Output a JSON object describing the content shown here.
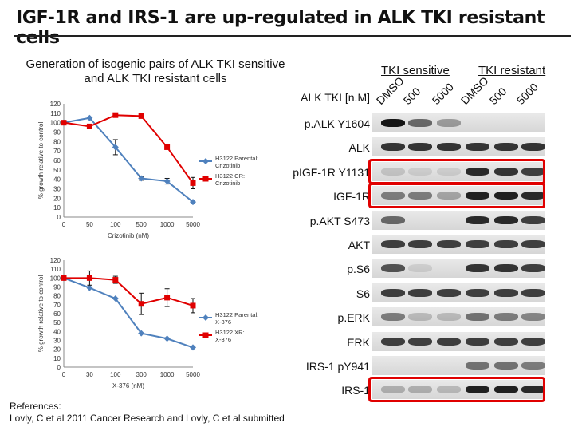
{
  "title": "IGF-1R and IRS-1 are up-regulated in ALK TKI resistant cells",
  "subtitle": "Generation of isogenic pairs of ALK TKI sensitive and ALK TKI resistant cells",
  "charts": [
    {
      "type": "line",
      "categories": [
        "0",
        "50",
        "100",
        "500",
        "1000",
        "5000"
      ],
      "ylabel": "% growth relative to control",
      "xlabel": "Crizotinib (nM)",
      "ylim": [
        0,
        120
      ],
      "yticks": [
        "0",
        "10",
        "20",
        "30",
        "40",
        "50",
        "60",
        "70",
        "80",
        "90",
        "100",
        "110",
        "120"
      ],
      "series": [
        {
          "name": "H3122 Parental: Crizotinib",
          "color": "#4f81bd",
          "marker": "diamond",
          "values": [
            100,
            105,
            74,
            41,
            38,
            16
          ],
          "err": [
            0,
            0,
            8,
            2,
            3,
            0
          ]
        },
        {
          "name": "H3122 CR: Crizotinib",
          "color": "#e00000",
          "marker": "square",
          "values": [
            100,
            96,
            108,
            107,
            74,
            36
          ],
          "err": [
            0,
            0,
            0,
            0,
            0,
            6
          ]
        }
      ]
    },
    {
      "type": "line",
      "categories": [
        "0",
        "30",
        "100",
        "300",
        "1000",
        "5000"
      ],
      "ylabel": "% growth relative to control",
      "xlabel": "X-376 (nM)",
      "ylim": [
        0,
        120
      ],
      "yticks": [
        "0",
        "10",
        "20",
        "30",
        "40",
        "50",
        "60",
        "70",
        "80",
        "90",
        "100",
        "110",
        "120"
      ],
      "series": [
        {
          "name": "H3122 Parental: X-376",
          "color": "#4f81bd",
          "marker": "diamond",
          "values": [
            100,
            89,
            77,
            38,
            32,
            22
          ],
          "err": [
            0,
            0,
            0,
            0,
            0,
            0
          ]
        },
        {
          "name": "H3122 XR: X-376",
          "color": "#e00000",
          "marker": "square",
          "values": [
            100,
            100,
            98,
            71,
            78,
            69
          ],
          "err": [
            0,
            8,
            4,
            12,
            10,
            8
          ]
        }
      ]
    }
  ],
  "blot": {
    "treatment_label": "ALK TKI [n.M]",
    "group_sensitive": "TKI sensitive",
    "group_resistant": "TKI resistant",
    "lanes": [
      "DMSO",
      "500",
      "5000",
      "DMSO",
      "500",
      "5000"
    ],
    "rows": [
      {
        "label": "p.ALK Y1604",
        "intensity": [
          1.0,
          0.6,
          0.35,
          0.0,
          0.0,
          0.0
        ],
        "highlight": false
      },
      {
        "label": "ALK",
        "intensity": [
          0.85,
          0.85,
          0.85,
          0.85,
          0.85,
          0.85
        ],
        "highlight": false
      },
      {
        "label": "pIGF-1R Y1131",
        "intensity": [
          0.15,
          0.1,
          0.1,
          0.9,
          0.85,
          0.8
        ],
        "highlight": true
      },
      {
        "label": "IGF-1R",
        "intensity": [
          0.5,
          0.5,
          0.3,
          0.95,
          0.95,
          0.9
        ],
        "highlight": true
      },
      {
        "label": "p.AKT S473",
        "intensity": [
          0.6,
          0.0,
          0.0,
          0.9,
          0.9,
          0.8
        ],
        "highlight": false
      },
      {
        "label": "AKT",
        "intensity": [
          0.8,
          0.8,
          0.8,
          0.8,
          0.8,
          0.8
        ],
        "highlight": false
      },
      {
        "label": "p.S6",
        "intensity": [
          0.7,
          0.1,
          0.0,
          0.85,
          0.85,
          0.8
        ],
        "highlight": false
      },
      {
        "label": "S6",
        "intensity": [
          0.8,
          0.8,
          0.8,
          0.8,
          0.8,
          0.8
        ],
        "highlight": false
      },
      {
        "label": "p.ERK",
        "intensity": [
          0.5,
          0.2,
          0.2,
          0.55,
          0.5,
          0.45
        ],
        "highlight": false
      },
      {
        "label": "ERK",
        "intensity": [
          0.8,
          0.8,
          0.8,
          0.8,
          0.8,
          0.8
        ],
        "highlight": false
      },
      {
        "label": "IRS-1 pY941",
        "intensity": [
          0.0,
          0.0,
          0.0,
          0.55,
          0.55,
          0.5
        ],
        "highlight": false
      },
      {
        "label": "IRS-1",
        "intensity": [
          0.25,
          0.25,
          0.2,
          0.95,
          0.95,
          0.9
        ],
        "highlight": true
      }
    ]
  },
  "references_line1": "References:",
  "references_line2": "Lovly, C et al 2011 Cancer Research and Lovly, C et al submitted"
}
